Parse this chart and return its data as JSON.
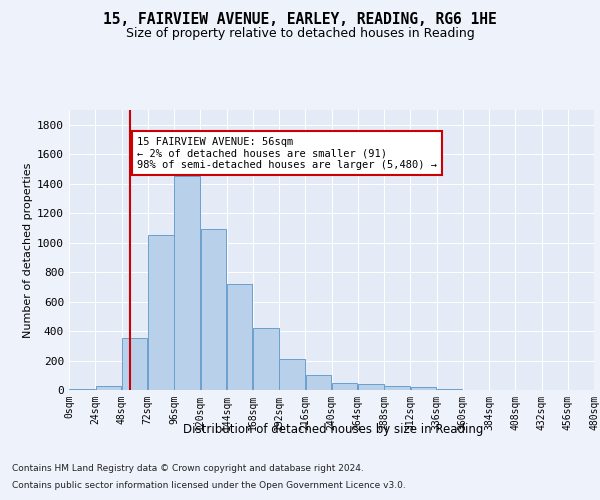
{
  "title1": "15, FAIRVIEW AVENUE, EARLEY, READING, RG6 1HE",
  "title2": "Size of property relative to detached houses in Reading",
  "xlabel": "Distribution of detached houses by size in Reading",
  "ylabel": "Number of detached properties",
  "bar_values": [
    10,
    30,
    350,
    1050,
    1450,
    1090,
    720,
    420,
    210,
    100,
    50,
    40,
    30,
    18,
    10,
    0,
    0,
    0,
    0,
    0
  ],
  "bin_edges": [
    0,
    24,
    48,
    72,
    96,
    120,
    144,
    168,
    192,
    216,
    240,
    264,
    288,
    312,
    336,
    360,
    384,
    408,
    432,
    456,
    480
  ],
  "bar_color": "#b8d0ea",
  "bar_edge_color": "#6aa0cc",
  "property_size": 56,
  "property_line_color": "#cc0000",
  "annotation_text": "15 FAIRVIEW AVENUE: 56sqm\n← 2% of detached houses are smaller (91)\n98% of semi-detached houses are larger (5,480) →",
  "annotation_box_color": "#ffffff",
  "annotation_box_edge": "#cc0000",
  "ylim": [
    0,
    1900
  ],
  "yticks": [
    0,
    200,
    400,
    600,
    800,
    1000,
    1200,
    1400,
    1600,
    1800
  ],
  "footnote1": "Contains HM Land Registry data © Crown copyright and database right 2024.",
  "footnote2": "Contains public sector information licensed under the Open Government Licence v3.0.",
  "background_color": "#eef2fb",
  "plot_background": "#e4eaf6"
}
